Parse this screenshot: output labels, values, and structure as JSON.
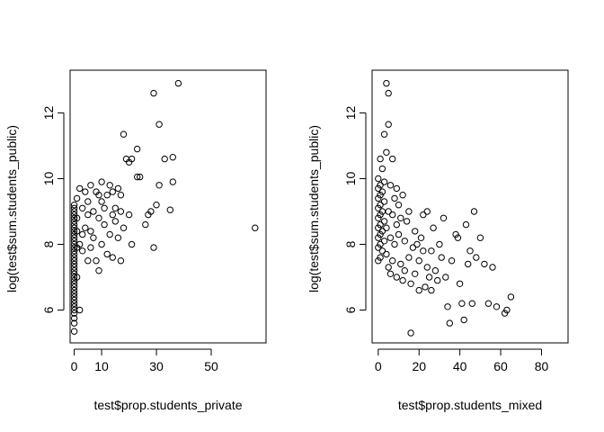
{
  "chart_data": [
    {
      "type": "scatter",
      "xlabel": "test$prop.students_private",
      "ylabel": "log(test$sum.students_public)",
      "xlim": [
        -1.5,
        70
      ],
      "ylim": [
        5,
        13.3
      ],
      "xticks": [
        0,
        10,
        30,
        50
      ],
      "yticks": [
        6,
        8,
        10,
        12
      ],
      "points": [
        [
          0,
          5.35
        ],
        [
          0,
          5.6
        ],
        [
          0,
          5.75
        ],
        [
          0,
          5.9
        ],
        [
          0,
          6.0
        ],
        [
          0,
          6.1
        ],
        [
          0,
          6.2
        ],
        [
          0,
          6.3
        ],
        [
          0,
          6.4
        ],
        [
          0,
          6.5
        ],
        [
          0,
          6.6
        ],
        [
          0,
          6.7
        ],
        [
          0,
          6.8
        ],
        [
          0,
          6.9
        ],
        [
          0,
          7.0
        ],
        [
          0,
          7.1
        ],
        [
          0,
          7.2
        ],
        [
          0,
          7.3
        ],
        [
          0,
          7.4
        ],
        [
          0,
          7.5
        ],
        [
          0,
          7.6
        ],
        [
          0,
          7.7
        ],
        [
          0,
          7.8
        ],
        [
          0,
          7.9
        ],
        [
          0,
          8.0
        ],
        [
          0,
          8.1
        ],
        [
          0,
          8.2
        ],
        [
          0,
          8.3
        ],
        [
          0,
          8.4
        ],
        [
          0,
          8.5
        ],
        [
          0,
          8.6
        ],
        [
          0,
          8.7
        ],
        [
          0,
          8.8
        ],
        [
          0,
          8.9
        ],
        [
          0,
          9.0
        ],
        [
          0,
          9.1
        ],
        [
          0,
          9.2
        ],
        [
          1,
          7.0
        ],
        [
          1,
          7.9
        ],
        [
          1,
          8.4
        ],
        [
          1,
          8.8
        ],
        [
          1,
          9.4
        ],
        [
          2,
          8.0
        ],
        [
          2,
          9.7
        ],
        [
          2,
          6.0
        ],
        [
          3,
          7.8
        ],
        [
          3,
          8.3
        ],
        [
          3,
          9.1
        ],
        [
          4,
          8.5
        ],
        [
          4,
          9.6
        ],
        [
          5,
          7.5
        ],
        [
          5,
          8.9
        ],
        [
          5,
          9.3
        ],
        [
          6,
          7.9
        ],
        [
          6,
          8.4
        ],
        [
          6,
          9.8
        ],
        [
          7,
          8.2
        ],
        [
          7,
          9.0
        ],
        [
          8,
          7.5
        ],
        [
          8,
          9.6
        ],
        [
          9,
          7.2
        ],
        [
          9,
          8.8
        ],
        [
          9,
          9.5
        ],
        [
          10,
          8.0
        ],
        [
          10,
          9.3
        ],
        [
          10,
          9.9
        ],
        [
          11,
          8.6
        ],
        [
          11,
          9.1
        ],
        [
          12,
          7.7
        ],
        [
          12,
          9.5
        ],
        [
          13,
          8.3
        ],
        [
          13,
          9.8
        ],
        [
          14,
          7.6
        ],
        [
          14,
          8.9
        ],
        [
          14,
          9.6
        ],
        [
          15,
          8.7
        ],
        [
          15,
          9.1
        ],
        [
          16,
          9.7
        ],
        [
          16,
          8.2
        ],
        [
          17,
          7.5
        ],
        [
          17,
          9.0
        ],
        [
          17,
          9.5
        ],
        [
          18,
          8.5
        ],
        [
          18,
          11.35
        ],
        [
          19,
          10.6
        ],
        [
          20,
          8.9
        ],
        [
          20,
          10.5
        ],
        [
          21,
          8.0
        ],
        [
          21,
          10.6
        ],
        [
          23,
          10.05
        ],
        [
          23,
          10.9
        ],
        [
          24,
          10.05
        ],
        [
          26,
          8.6
        ],
        [
          27,
          8.9
        ],
        [
          28,
          9.0
        ],
        [
          29,
          12.6
        ],
        [
          29,
          7.9
        ],
        [
          30,
          9.2
        ],
        [
          31,
          11.65
        ],
        [
          31,
          9.8
        ],
        [
          33,
          10.6
        ],
        [
          35,
          9.05
        ],
        [
          36,
          9.9
        ],
        [
          36,
          10.65
        ],
        [
          38,
          12.9
        ],
        [
          66,
          8.5
        ]
      ]
    },
    {
      "type": "scatter",
      "xlabel": "test$prop.students_mixed",
      "ylabel": "log(test$sum.students_public)",
      "xlim": [
        -3,
        93
      ],
      "ylim": [
        5,
        13.3
      ],
      "xticks": [
        0,
        20,
        40,
        60,
        80
      ],
      "yticks": [
        6,
        8,
        10,
        12
      ],
      "points": [
        [
          0,
          7.5
        ],
        [
          0,
          7.9
        ],
        [
          0,
          8.2
        ],
        [
          0,
          8.5
        ],
        [
          0,
          8.8
        ],
        [
          0,
          9.1
        ],
        [
          0,
          9.4
        ],
        [
          0,
          9.7
        ],
        [
          0,
          10.0
        ],
        [
          1,
          7.6
        ],
        [
          1,
          8.0
        ],
        [
          1,
          8.3
        ],
        [
          1,
          8.6
        ],
        [
          1,
          8.9
        ],
        [
          1,
          9.2
        ],
        [
          1,
          9.5
        ],
        [
          1,
          9.8
        ],
        [
          1,
          10.6
        ],
        [
          2,
          7.8
        ],
        [
          2,
          8.4
        ],
        [
          2,
          9.0
        ],
        [
          2,
          9.6
        ],
        [
          2,
          10.3
        ],
        [
          3,
          8.1
        ],
        [
          3,
          8.7
        ],
        [
          3,
          9.3
        ],
        [
          3,
          9.9
        ],
        [
          3,
          11.35
        ],
        [
          4,
          12.9
        ],
        [
          4,
          7.7
        ],
        [
          4,
          8.5
        ],
        [
          4,
          10.8
        ],
        [
          5,
          12.6
        ],
        [
          5,
          11.65
        ],
        [
          5,
          9.0
        ],
        [
          5,
          7.3
        ],
        [
          6,
          9.8
        ],
        [
          6,
          8.2
        ],
        [
          6,
          7.1
        ],
        [
          7,
          10.6
        ],
        [
          7,
          8.9
        ],
        [
          7,
          7.5
        ],
        [
          8,
          9.4
        ],
        [
          8,
          8.0
        ],
        [
          9,
          9.7
        ],
        [
          9,
          8.6
        ],
        [
          9,
          7.0
        ],
        [
          10,
          9.2
        ],
        [
          10,
          8.3
        ],
        [
          11,
          7.4
        ],
        [
          11,
          8.8
        ],
        [
          12,
          6.9
        ],
        [
          12,
          9.5
        ],
        [
          13,
          8.1
        ],
        [
          13,
          7.2
        ],
        [
          14,
          8.7
        ],
        [
          15,
          7.6
        ],
        [
          15,
          9.0
        ],
        [
          16,
          6.8
        ],
        [
          16,
          5.3
        ],
        [
          17,
          7.9
        ],
        [
          18,
          8.4
        ],
        [
          18,
          7.1
        ],
        [
          19,
          8.0
        ],
        [
          20,
          7.5
        ],
        [
          20,
          6.6
        ],
        [
          21,
          8.2
        ],
        [
          22,
          7.8
        ],
        [
          22,
          8.9
        ],
        [
          23,
          6.7
        ],
        [
          24,
          7.3
        ],
        [
          24,
          9.0
        ],
        [
          25,
          7.0
        ],
        [
          26,
          6.6
        ],
        [
          26,
          7.8
        ],
        [
          27,
          8.5
        ],
        [
          28,
          7.2
        ],
        [
          29,
          6.9
        ],
        [
          30,
          8.0
        ],
        [
          31,
          7.6
        ],
        [
          32,
          8.8
        ],
        [
          33,
          7.0
        ],
        [
          34,
          6.1
        ],
        [
          35,
          5.6
        ],
        [
          36,
          7.5
        ],
        [
          38,
          8.3
        ],
        [
          39,
          8.2
        ],
        [
          40,
          6.8
        ],
        [
          41,
          6.2
        ],
        [
          42,
          5.7
        ],
        [
          43,
          8.6
        ],
        [
          44,
          7.4
        ],
        [
          45,
          7.8
        ],
        [
          46,
          6.2
        ],
        [
          47,
          9.0
        ],
        [
          48,
          7.6
        ],
        [
          50,
          8.2
        ],
        [
          52,
          7.4
        ],
        [
          54,
          6.2
        ],
        [
          56,
          7.3
        ],
        [
          58,
          6.1
        ],
        [
          62,
          5.9
        ],
        [
          63,
          6.0
        ],
        [
          65,
          6.4
        ]
      ]
    }
  ]
}
